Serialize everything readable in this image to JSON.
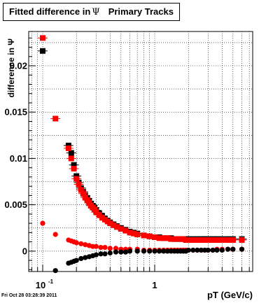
{
  "title": {
    "text": "Fitted difference in",
    "symbol": "Ψ",
    "suffix": "Primary Tracks"
  },
  "timestamp": "Fri Oct 28 03:28:39 2011",
  "colors": {
    "series_red": "#ff0000",
    "series_black": "#000000",
    "grid": "#000000",
    "background": "#ffffff"
  },
  "chart_data": {
    "type": "scatter",
    "title": "Fitted difference in Ψ Primary Tracks",
    "xlabel": "pT (GeV/c)",
    "ylabel": "difference in Ψ",
    "xscale": "log",
    "xlim": [
      0.075,
      7.5
    ],
    "ylim": [
      -0.0022,
      0.0237
    ],
    "grid": true,
    "legend": "none",
    "x_ticks": [
      {
        "value": 0.1,
        "base": "10",
        "exp": "-1"
      },
      {
        "value": 1,
        "label": "1"
      }
    ],
    "y_ticks": [
      {
        "value": 0,
        "label": "0"
      },
      {
        "value": 0.005,
        "label": "0.005"
      },
      {
        "value": 0.01,
        "label": "0.01"
      },
      {
        "value": 0.015,
        "label": "0.015"
      },
      {
        "value": 0.02,
        "label": "0.02"
      }
    ],
    "series": [
      {
        "color": "#000000",
        "marker": "square",
        "x": [
          0.1,
          0.17,
          0.18,
          0.19,
          0.2,
          0.21,
          0.22,
          0.23,
          0.24,
          0.25,
          0.26,
          0.27,
          0.28,
          0.29,
          0.3,
          0.32,
          0.34,
          0.36,
          0.38,
          0.4,
          0.43,
          0.46,
          0.5,
          0.55,
          0.6,
          0.65,
          0.7,
          0.8,
          0.9,
          1.0,
          1.1,
          1.2,
          1.3,
          1.4,
          1.5,
          1.6,
          1.7,
          1.8,
          1.9,
          2.0,
          2.2,
          2.4,
          2.6,
          2.8,
          3.0,
          3.3,
          3.6,
          4.0,
          4.5,
          5.0,
          6.0
        ],
        "y": [
          0.0216,
          0.0114,
          0.0106,
          0.0093,
          0.0081,
          0.0074,
          0.0068,
          0.0064,
          0.006,
          0.0057,
          0.0054,
          0.0051,
          0.0049,
          0.0047,
          0.0044,
          0.0041,
          0.0038,
          0.0035,
          0.0033,
          0.0031,
          0.0029,
          0.0027,
          0.0025,
          0.0023,
          0.0021,
          0.002,
          0.0019,
          0.0017,
          0.0016,
          0.0015,
          0.0015,
          0.0014,
          0.0014,
          0.0014,
          0.0013,
          0.0013,
          0.0013,
          0.0013,
          0.0013,
          0.0013,
          0.0013,
          0.0013,
          0.0013,
          0.0013,
          0.0013,
          0.0013,
          0.0013,
          0.0013,
          0.0013,
          0.0013,
          0.0013
        ]
      },
      {
        "color": "#ff0000",
        "marker": "square",
        "x": [
          0.1,
          0.13,
          0.17,
          0.18,
          0.19,
          0.2,
          0.21,
          0.22,
          0.23,
          0.24,
          0.25,
          0.26,
          0.27,
          0.28,
          0.29,
          0.3,
          0.32,
          0.34,
          0.36,
          0.38,
          0.4,
          0.43,
          0.46,
          0.5,
          0.55,
          0.6,
          0.65,
          0.7,
          0.8,
          0.9,
          1.0,
          1.1,
          1.2,
          1.3,
          1.4,
          1.5,
          1.6,
          1.7,
          1.8,
          1.9,
          2.0,
          2.2,
          2.4,
          2.6,
          2.8,
          3.0,
          3.3,
          3.6,
          4.0,
          4.5,
          5.0,
          6.0
        ],
        "y": [
          0.023,
          0.0143,
          0.0111,
          0.01,
          0.0089,
          0.0078,
          0.0072,
          0.0066,
          0.0062,
          0.0058,
          0.0055,
          0.0052,
          0.0049,
          0.0047,
          0.0045,
          0.0042,
          0.0039,
          0.0036,
          0.0034,
          0.0032,
          0.003,
          0.0028,
          0.0026,
          0.0024,
          0.0022,
          0.002,
          0.0019,
          0.0018,
          0.0017,
          0.0016,
          0.0015,
          0.0014,
          0.0014,
          0.0014,
          0.0013,
          0.0013,
          0.0013,
          0.0013,
          0.0013,
          0.0012,
          0.0012,
          0.0012,
          0.0012,
          0.0012,
          0.0012,
          0.0012,
          0.0012,
          0.0012,
          0.0012,
          0.0012,
          0.0012,
          0.0012
        ]
      },
      {
        "color": "#ff0000",
        "marker": "circle",
        "x": [
          0.1,
          0.13,
          0.17,
          0.18,
          0.19,
          0.2,
          0.22,
          0.24,
          0.26,
          0.28,
          0.3,
          0.33,
          0.36,
          0.4,
          0.45,
          0.5,
          0.55,
          0.6,
          0.7,
          0.8,
          0.9,
          1.0,
          1.1,
          1.2,
          1.3,
          1.4,
          1.5,
          1.6,
          1.7,
          1.8,
          1.9,
          2.0,
          2.2,
          2.4,
          2.6,
          2.8,
          3.0,
          3.3,
          3.6,
          4.0,
          4.5,
          5.0,
          6.0
        ],
        "y": [
          0.003,
          0.0018,
          0.0012,
          0.0011,
          0.001,
          0.0009,
          0.0008,
          0.0007,
          0.0006,
          0.0005,
          0.0005,
          0.0004,
          0.0004,
          0.0003,
          0.0003,
          0.0002,
          0.0002,
          0.0002,
          0.0002,
          0.0001,
          0.0001,
          0.0001,
          0.0001,
          0.0001,
          0.0001,
          0.0001,
          0.0001,
          0.0001,
          0.0001,
          0.0001,
          0.0001,
          0.0001,
          0.0001,
          0.0001,
          0.0001,
          0.0001,
          0.0001,
          0.0001,
          0.0002,
          0.0002,
          0.0002,
          0.0002,
          0.0002
        ]
      },
      {
        "color": "#000000",
        "marker": "circle",
        "x": [
          0.13,
          0.17,
          0.18,
          0.19,
          0.2,
          0.22,
          0.24,
          0.26,
          0.28,
          0.3,
          0.33,
          0.36,
          0.4,
          0.45,
          0.5,
          0.55,
          0.6,
          0.7,
          0.8,
          0.9,
          1.0,
          1.1,
          1.2,
          1.3,
          1.4,
          1.5,
          1.6,
          1.7,
          1.8,
          1.9,
          2.0,
          2.2,
          2.4,
          2.6,
          2.8,
          3.0,
          3.3,
          3.6,
          4.0,
          4.5,
          5.0,
          6.0
        ],
        "y": [
          -0.0021,
          -0.0013,
          -0.0012,
          -0.0011,
          -0.001,
          -0.0008,
          -0.0007,
          -0.0006,
          -0.0005,
          -0.0004,
          -0.0003,
          -0.0003,
          -0.0002,
          -0.0001,
          -0.0001,
          -0.0001,
          0.0,
          0.0,
          0.0,
          0.0,
          0.0,
          0.0,
          0.0,
          0.0,
          0.0,
          0.0,
          0.0,
          0.0,
          0.0,
          0.0,
          0.0001,
          0.0001,
          0.0001,
          0.0001,
          0.0001,
          0.0001,
          0.0001,
          0.0001,
          0.0001,
          0.0002,
          0.0002,
          0.0002
        ]
      }
    ]
  }
}
